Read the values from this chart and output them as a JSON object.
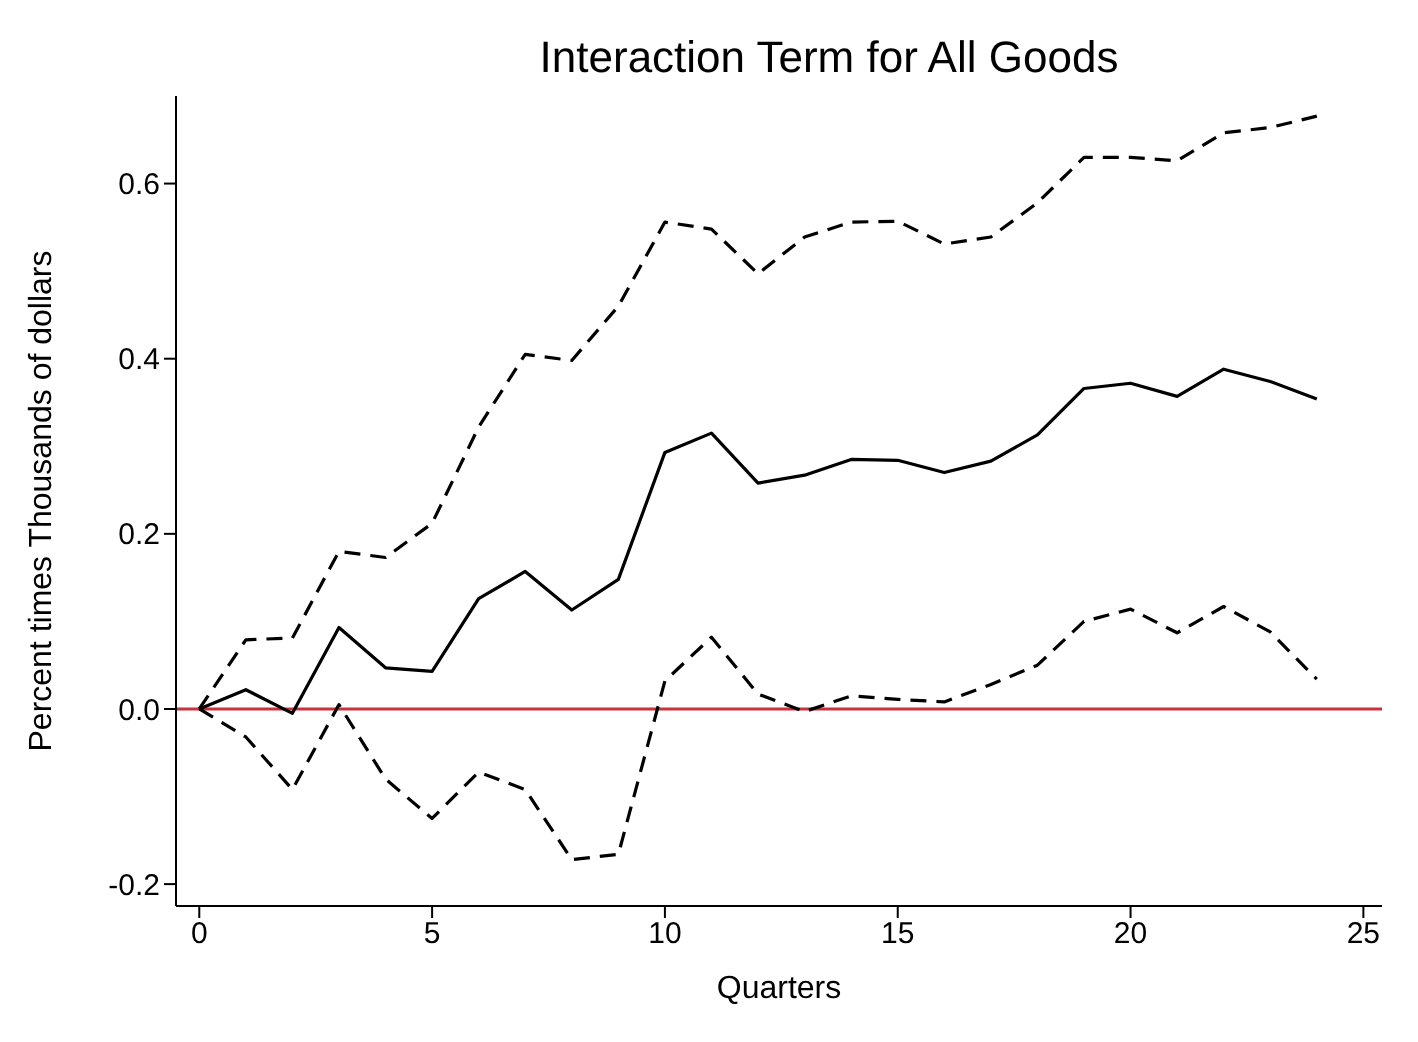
{
  "chart_data": {
    "type": "line",
    "title": "Interaction Term for All Goods",
    "xlabel": "Quarters",
    "ylabel": "Percent times Thousands of dollars",
    "x": [
      0,
      1,
      2,
      3,
      4,
      5,
      6,
      7,
      8,
      9,
      10,
      11,
      12,
      13,
      14,
      15,
      16,
      17,
      18,
      19,
      20,
      21,
      22,
      23,
      24
    ],
    "series": [
      {
        "color": "#000000",
        "line_style": "solid",
        "values": [
          0,
          0.022,
          -0.005,
          0.093,
          0.047,
          0.043,
          0.126,
          0.157,
          0.113,
          0.148,
          0.293,
          0.315,
          0.258,
          0.267,
          0.285,
          0.284,
          0.27,
          0.283,
          0.313,
          0.366,
          0.372,
          0.357,
          0.388,
          0.374,
          0.354
        ]
      },
      {
        "color": "#000000",
        "line_style": "dashed",
        "values": [
          0,
          0.079,
          0.081,
          0.18,
          0.173,
          0.212,
          0.322,
          0.405,
          0.398,
          0.46,
          0.556,
          0.548,
          0.497,
          0.539,
          0.556,
          0.557,
          0.531,
          0.539,
          0.578,
          0.63,
          0.63,
          0.626,
          0.658,
          0.664,
          0.677
        ]
      },
      {
        "color": "#000000",
        "line_style": "dashed",
        "values": [
          0,
          -0.032,
          -0.092,
          0.005,
          -0.08,
          -0.125,
          -0.072,
          -0.092,
          -0.172,
          -0.166,
          0.032,
          0.082,
          0.017,
          -0.003,
          0.015,
          0.011,
          0.008,
          0.028,
          0.05,
          0.1,
          0.114,
          0.087,
          0.117,
          0.088,
          0.034
        ]
      }
    ],
    "xlim": [
      -0.5,
      25.4
    ],
    "xticks": [
      0,
      5,
      10,
      15,
      20,
      25
    ],
    "ylim": [
      -0.225,
      0.7
    ],
    "yticks": [
      {
        "value": -0.2,
        "label": "-0.2"
      },
      {
        "value": 0,
        "label": "0.0"
      },
      {
        "value": 0.2,
        "label": "0.2"
      },
      {
        "value": 0.4,
        "label": "0.4"
      },
      {
        "value": 0.6,
        "label": "0.6"
      }
    ],
    "ref_lines": [
      {
        "axis": "y",
        "value": 0,
        "color": "#c8323c"
      }
    ],
    "grid": false,
    "legend": false
  }
}
